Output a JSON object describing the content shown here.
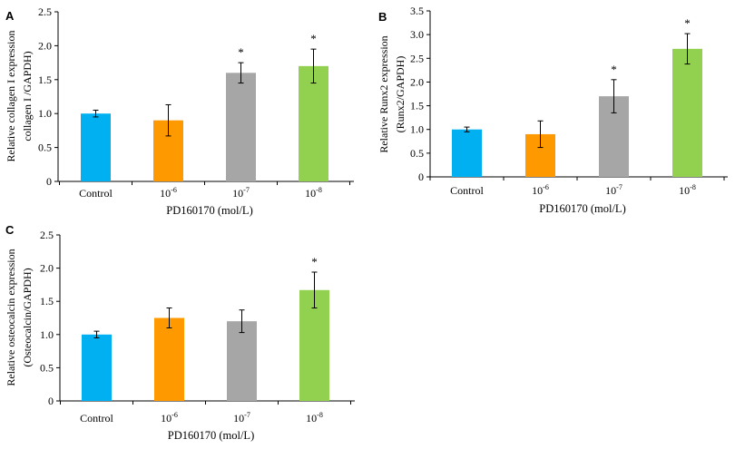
{
  "chart_data": [
    {
      "type": "bar",
      "panel": "A",
      "categories": [
        {
          "base": "Control",
          "exp": ""
        },
        {
          "base": "10",
          "exp": "-6"
        },
        {
          "base": "10",
          "exp": "-7"
        },
        {
          "base": "10",
          "exp": "-8"
        }
      ],
      "values": [
        1.0,
        0.9,
        1.6,
        1.7
      ],
      "errors": [
        0.05,
        0.23,
        0.15,
        0.25
      ],
      "significant": [
        false,
        false,
        true,
        true
      ],
      "colors": [
        "#00b0f0",
        "#ff9900",
        "#a6a6a6",
        "#92d050"
      ],
      "ylim": [
        0,
        2.5
      ],
      "yticks": [
        "0",
        "0.5",
        "1.0",
        "1.5",
        "2.0",
        "2.5"
      ],
      "xlabel": "PD160170 (mol/L)",
      "ylabel_lines": [
        "Relative collagen I expression",
        "collagen I /GAPDH)"
      ],
      "marker": "*",
      "grid": false
    },
    {
      "type": "bar",
      "panel": "B",
      "categories": [
        {
          "base": "Control",
          "exp": ""
        },
        {
          "base": "10",
          "exp": "-6"
        },
        {
          "base": "10",
          "exp": "-7"
        },
        {
          "base": "10",
          "exp": "-8"
        }
      ],
      "values": [
        1.0,
        0.9,
        1.7,
        2.7
      ],
      "errors": [
        0.05,
        0.28,
        0.35,
        0.32
      ],
      "significant": [
        false,
        false,
        true,
        true
      ],
      "colors": [
        "#00b0f0",
        "#ff9900",
        "#a6a6a6",
        "#92d050"
      ],
      "ylim": [
        0,
        3.5
      ],
      "yticks": [
        "0",
        "0.5",
        "1.0",
        "1.5",
        "2.0",
        "2.5",
        "3.0",
        "3.5"
      ],
      "xlabel": "PD160170 (mol/L)",
      "ylabel_lines": [
        "Relative Runx2  expression",
        "(Runx2/GAPDH)"
      ],
      "marker": "*",
      "grid": false
    },
    {
      "type": "bar",
      "panel": "C",
      "categories": [
        {
          "base": "Control",
          "exp": ""
        },
        {
          "base": "10",
          "exp": "-6"
        },
        {
          "base": "10",
          "exp": "-7"
        },
        {
          "base": "10",
          "exp": "-8"
        }
      ],
      "values": [
        1.0,
        1.25,
        1.2,
        1.67
      ],
      "errors": [
        0.05,
        0.15,
        0.17,
        0.27
      ],
      "significant": [
        false,
        false,
        false,
        true
      ],
      "colors": [
        "#00b0f0",
        "#ff9900",
        "#a6a6a6",
        "#92d050"
      ],
      "ylim": [
        0,
        2.5
      ],
      "yticks": [
        "0",
        "0.5",
        "1.0",
        "1.5",
        "2.0",
        "2.5"
      ],
      "xlabel": "PD160170 (mol/L)",
      "ylabel_lines": [
        "Relative osteocalcin expression",
        "(Osteocalcin/GAPDH)"
      ],
      "marker": "*",
      "grid": false
    }
  ]
}
